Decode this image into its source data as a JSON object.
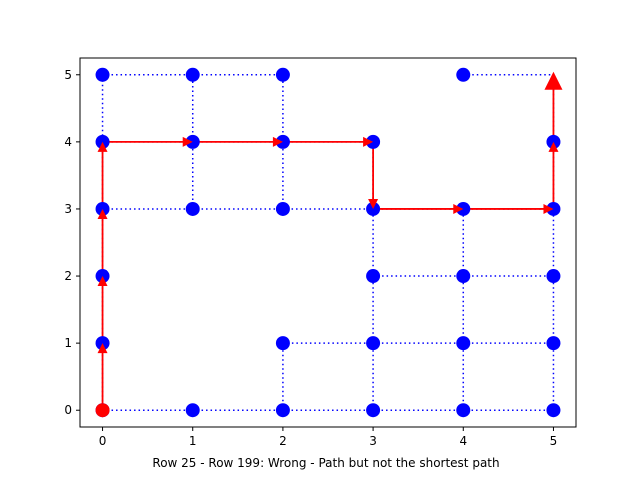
{
  "chart_data": {
    "type": "scatter",
    "title": "",
    "xlabel": "Row 25 - Row 199: Wrong - Path but not the shortest path",
    "ylabel": "",
    "xlim": [
      -0.25,
      5.25
    ],
    "ylim": [
      -0.25,
      5.25
    ],
    "x_ticks": [
      "0",
      "1",
      "2",
      "3",
      "4",
      "5"
    ],
    "y_ticks": [
      "0",
      "1",
      "2",
      "3",
      "4",
      "5"
    ],
    "grid": false,
    "colors": {
      "node": "#0000ff",
      "edge": "#0000ff",
      "path": "#ff0000",
      "start": "#ff0000"
    },
    "nodes": [
      [
        0,
        0
      ],
      [
        1,
        0
      ],
      [
        2,
        0
      ],
      [
        3,
        0
      ],
      [
        4,
        0
      ],
      [
        5,
        0
      ],
      [
        0,
        1
      ],
      [
        2,
        1
      ],
      [
        3,
        1
      ],
      [
        4,
        1
      ],
      [
        5,
        1
      ],
      [
        0,
        2
      ],
      [
        3,
        2
      ],
      [
        4,
        2
      ],
      [
        5,
        2
      ],
      [
        0,
        3
      ],
      [
        1,
        3
      ],
      [
        2,
        3
      ],
      [
        3,
        3
      ],
      [
        4,
        3
      ],
      [
        5,
        3
      ],
      [
        0,
        4
      ],
      [
        1,
        4
      ],
      [
        2,
        4
      ],
      [
        3,
        4
      ],
      [
        5,
        4
      ],
      [
        0,
        5
      ],
      [
        1,
        5
      ],
      [
        2,
        5
      ],
      [
        4,
        5
      ]
    ],
    "edges": [
      [
        [
          0,
          0
        ],
        [
          5,
          0
        ]
      ],
      [
        [
          2,
          1
        ],
        [
          5,
          1
        ]
      ],
      [
        [
          3,
          2
        ],
        [
          5,
          2
        ]
      ],
      [
        [
          0,
          3
        ],
        [
          5,
          3
        ]
      ],
      [
        [
          0,
          4
        ],
        [
          3,
          4
        ]
      ],
      [
        [
          0,
          5
        ],
        [
          2,
          5
        ]
      ],
      [
        [
          4,
          5
        ],
        [
          5,
          5
        ]
      ],
      [
        [
          0,
          0
        ],
        [
          0,
          5
        ]
      ],
      [
        [
          1,
          3
        ],
        [
          1,
          5
        ]
      ],
      [
        [
          2,
          0
        ],
        [
          2,
          1
        ]
      ],
      [
        [
          2,
          3
        ],
        [
          2,
          5
        ]
      ],
      [
        [
          3,
          0
        ],
        [
          3,
          4
        ]
      ],
      [
        [
          4,
          0
        ],
        [
          4,
          3
        ]
      ],
      [
        [
          5,
          0
        ],
        [
          5,
          5
        ]
      ]
    ],
    "path": [
      [
        0,
        0
      ],
      [
        0,
        1
      ],
      [
        0,
        2
      ],
      [
        0,
        3
      ],
      [
        0,
        4
      ],
      [
        1,
        4
      ],
      [
        2,
        4
      ],
      [
        3,
        4
      ],
      [
        3,
        3
      ],
      [
        4,
        3
      ],
      [
        5,
        3
      ],
      [
        5,
        4
      ],
      [
        5,
        5
      ]
    ],
    "start": [
      0,
      0
    ],
    "end": [
      5,
      5
    ]
  }
}
